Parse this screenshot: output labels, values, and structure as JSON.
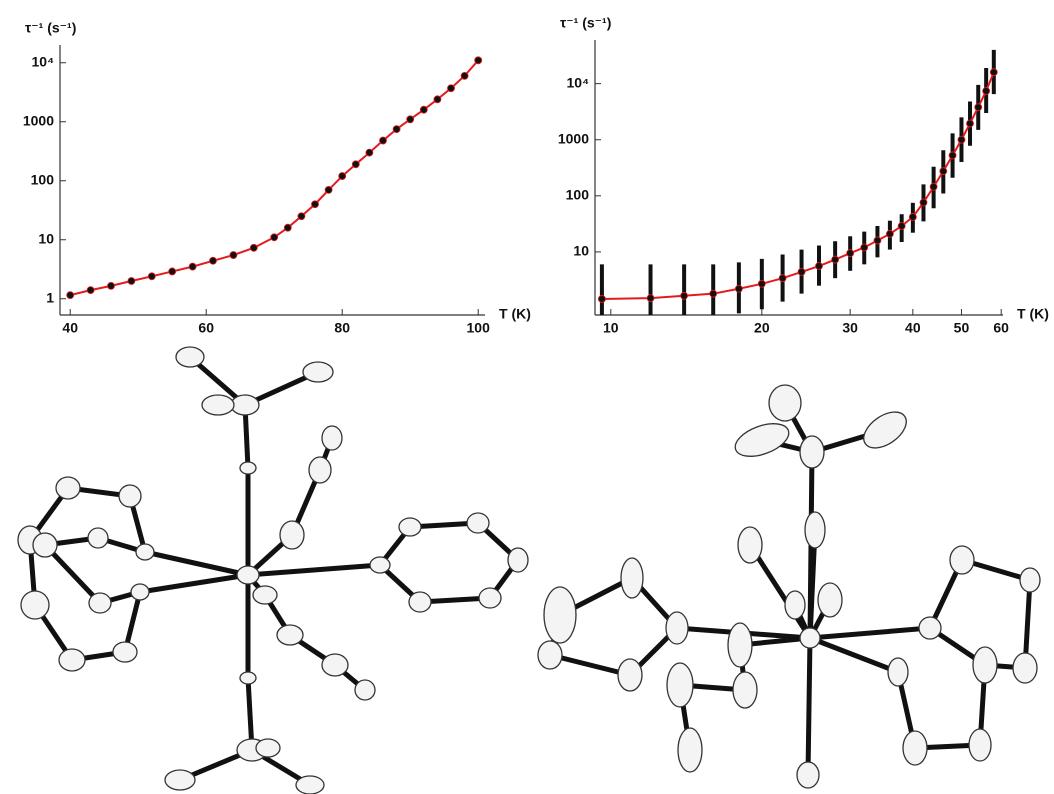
{
  "chart_data": [
    {
      "type": "line",
      "y_label": "τ⁻¹ (s⁻¹)",
      "x_label": "T (K)",
      "x": [
        40,
        43,
        46,
        49,
        52,
        55,
        58,
        61,
        64,
        67,
        70,
        72,
        74,
        76,
        78,
        80,
        82,
        84,
        86,
        88,
        90,
        92,
        94,
        96,
        98,
        100
      ],
      "values": [
        1.15,
        1.4,
        1.65,
        2.0,
        2.4,
        2.9,
        3.5,
        4.4,
        5.5,
        7.3,
        11,
        16,
        25,
        40,
        70,
        120,
        190,
        300,
        480,
        750,
        1100,
        1600,
        2400,
        3700,
        6000,
        11000
      ],
      "color": "#111111",
      "line_color": "#e41a1c",
      "x_log": false,
      "y_log": true,
      "xlim": [
        38.5,
        101
      ],
      "ylim": [
        0.53,
        20000
      ],
      "xticks": [
        40,
        60,
        80,
        100
      ],
      "yticks": [
        1,
        10,
        100,
        1000,
        {
          "value": 10000,
          "label": "10⁴"
        }
      ]
    },
    {
      "type": "line",
      "y_label": "τ⁻¹ (s⁻¹)",
      "x_label": "T (K)",
      "x": [
        9.6,
        12,
        14,
        16,
        18,
        20,
        22,
        24,
        26,
        28,
        30,
        32,
        34,
        36,
        38,
        40,
        42,
        44,
        46,
        48,
        50,
        52,
        54,
        56,
        58
      ],
      "values": [
        1.45,
        1.5,
        1.65,
        1.8,
        2.2,
        2.7,
        3.4,
        4.4,
        5.6,
        7.3,
        9.5,
        12,
        16,
        21,
        29,
        42,
        76,
        145,
        275,
        525,
        1000,
        1950,
        3800,
        7400,
        16000
      ],
      "errors_lower": [
        0.75,
        0.75,
        0.75,
        0.75,
        0.8,
        0.95,
        1.3,
        1.8,
        2.5,
        3.4,
        4.6,
        6,
        8,
        11,
        15,
        22,
        35,
        60,
        110,
        210,
        400,
        780,
        1500,
        3000,
        6500
      ],
      "errors_upper": [
        6,
        6,
        6,
        6,
        6.5,
        7.5,
        9,
        11,
        13,
        15.5,
        19,
        23,
        29,
        36,
        47,
        75,
        160,
        330,
        650,
        1300,
        2500,
        4800,
        9500,
        19000,
        40000
      ],
      "color": "#111111",
      "line_color": "#e41a1c",
      "x_log": true,
      "y_log": true,
      "xlim": [
        9.3,
        60.5
      ],
      "ylim": [
        0.75,
        60000
      ],
      "xticks": [
        10,
        20,
        30,
        40,
        50,
        60
      ],
      "yticks": [
        10,
        100,
        1000,
        {
          "value": 10000,
          "label": "10⁴"
        }
      ]
    }
  ]
}
